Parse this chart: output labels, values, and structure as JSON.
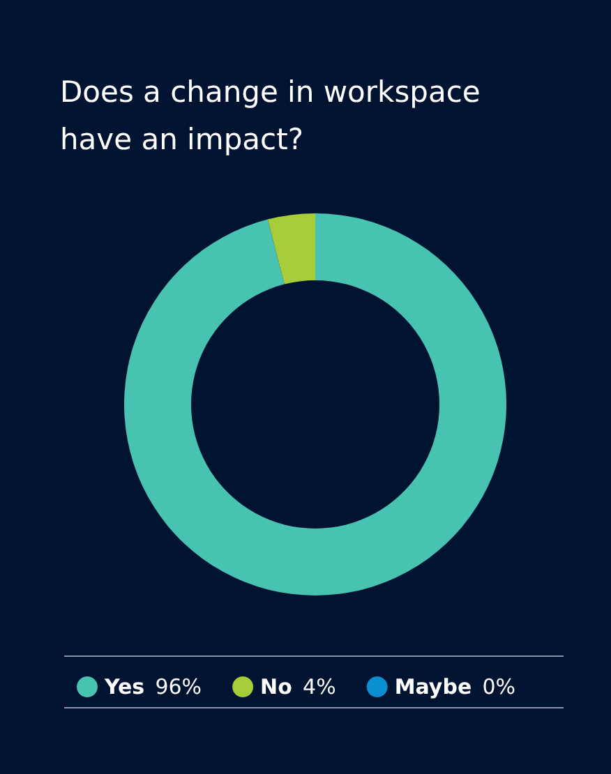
{
  "chart_data": {
    "type": "donut",
    "title": "Does a change in workspace have an impact?",
    "categories": [
      "Yes",
      "No",
      "Maybe"
    ],
    "values": [
      96,
      4,
      0
    ],
    "colors": [
      "#48c2b1",
      "#a6cc39",
      "#0b8fd1"
    ],
    "value_labels": [
      "96%",
      "4%",
      "0%"
    ],
    "legend": "bottom"
  }
}
